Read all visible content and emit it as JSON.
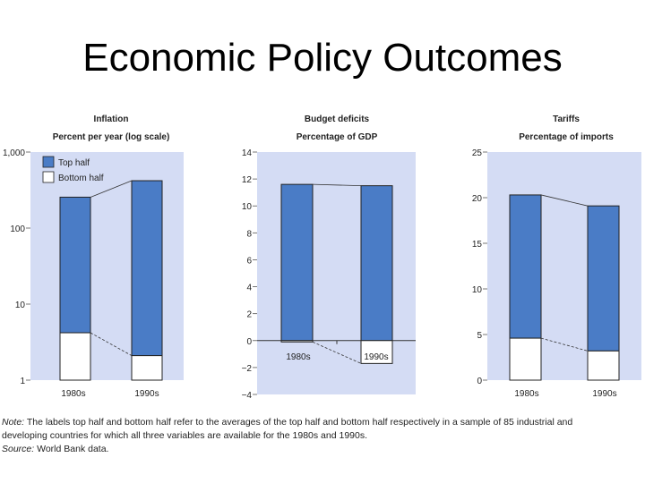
{
  "slide_title": "Economic Policy Outcomes",
  "legend": {
    "top": "Top half",
    "bottom": "Bottom half"
  },
  "colors": {
    "panel_bg": "#d4dcf4",
    "top_bar": "#4a7cc6",
    "bottom_bar": "#ffffff",
    "stroke": "#222222"
  },
  "chart_data": [
    {
      "type": "bar",
      "title": "Inflation",
      "subtitle": "Percent per year (log scale)",
      "scale": "log",
      "ylim": [
        1,
        1000
      ],
      "yticks": [
        1,
        10,
        100,
        1000
      ],
      "ytick_labels": [
        "1",
        "10",
        "100",
        "1,000"
      ],
      "categories": [
        "1980s",
        "1990s"
      ],
      "category_label_position": "below",
      "series": [
        {
          "name": "Top half",
          "values": [
            255,
            420
          ]
        },
        {
          "name": "Bottom half",
          "values": [
            4.2,
            2.1
          ]
        }
      ],
      "legend": "top-left"
    },
    {
      "type": "bar",
      "title": "Budget deficits",
      "subtitle": "Percentage of GDP",
      "scale": "linear",
      "ylim": [
        -4,
        14
      ],
      "yticks": [
        -4,
        -2,
        0,
        2,
        4,
        6,
        8,
        10,
        12,
        14
      ],
      "ytick_labels": [
        "−4",
        "−2",
        "0",
        "2",
        "4",
        "6",
        "8",
        "10",
        "12",
        "14"
      ],
      "categories": [
        "1980s",
        "1990s"
      ],
      "category_label_position": "inside",
      "series": [
        {
          "name": "Top half",
          "values": [
            11.6,
            11.5
          ]
        },
        {
          "name": "Bottom half",
          "values": [
            -0.1,
            -1.7
          ]
        }
      ]
    },
    {
      "type": "bar",
      "title": "Tariffs",
      "subtitle": "Percentage of imports",
      "scale": "linear",
      "ylim": [
        0,
        25
      ],
      "yticks": [
        0,
        5,
        10,
        15,
        20,
        25
      ],
      "ytick_labels": [
        "0",
        "5",
        "10",
        "15",
        "20",
        "25"
      ],
      "categories": [
        "1980s",
        "1990s"
      ],
      "category_label_position": "below",
      "series": [
        {
          "name": "Top half",
          "values": [
            20.3,
            19.1
          ]
        },
        {
          "name": "Bottom half",
          "values": [
            4.6,
            3.2
          ]
        }
      ]
    }
  ],
  "note": {
    "label": "Note:",
    "line1": "The labels top half and bottom half refer to the averages of the top half and bottom half respectively in a sample of 85 industrial and",
    "line2": "developing countries for which all three variables are available for the 1980s and 1990s."
  },
  "source": {
    "label": "Source:",
    "text": "World Bank data."
  }
}
